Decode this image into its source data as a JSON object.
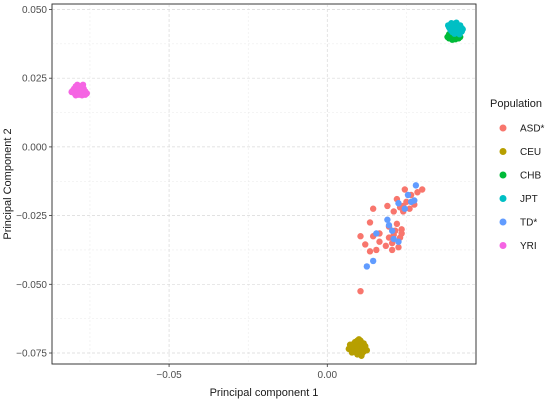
{
  "chart_data": {
    "type": "scatter",
    "xlabel": "Principal component 1",
    "ylabel": "Principal Component 2",
    "xlim": [
      -0.087,
      0.047
    ],
    "ylim": [
      -0.079,
      0.052
    ],
    "x_ticks": [
      -0.05,
      0.0
    ],
    "x_tick_labels": [
      "−0.05",
      "0.00"
    ],
    "y_ticks": [
      0.05,
      0.025,
      0.0,
      -0.025,
      -0.05,
      -0.075
    ],
    "y_tick_labels": [
      "0.050",
      "0.025",
      "0.000",
      "−0.025",
      "−0.050",
      "−0.075"
    ],
    "grid": true,
    "legend": {
      "title": "Population",
      "position": "right"
    },
    "series": [
      {
        "name": "ASD*",
        "color": "#F8766D",
        "points": [
          [
            0.0245,
            -0.0155
          ],
          [
            0.0285,
            -0.0165
          ],
          [
            0.03,
            -0.0155
          ],
          [
            0.0265,
            -0.0175
          ],
          [
            0.022,
            -0.019
          ],
          [
            0.025,
            -0.02
          ],
          [
            0.0275,
            -0.021
          ],
          [
            0.024,
            -0.0215
          ],
          [
            0.019,
            -0.0215
          ],
          [
            0.023,
            -0.022
          ],
          [
            0.026,
            -0.0225
          ],
          [
            0.0145,
            -0.0225
          ],
          [
            0.021,
            -0.0235
          ],
          [
            0.024,
            -0.0235
          ],
          [
            0.0135,
            -0.0275
          ],
          [
            0.022,
            -0.028
          ],
          [
            0.0195,
            -0.029
          ],
          [
            0.0215,
            -0.0305
          ],
          [
            0.0235,
            -0.03
          ],
          [
            0.0165,
            -0.0315
          ],
          [
            0.021,
            -0.032
          ],
          [
            0.0145,
            -0.0325
          ],
          [
            0.0105,
            -0.0325
          ],
          [
            0.0195,
            -0.033
          ],
          [
            0.023,
            -0.033
          ],
          [
            0.0165,
            -0.0345
          ],
          [
            0.0205,
            -0.035
          ],
          [
            0.012,
            -0.0355
          ],
          [
            0.0185,
            -0.036
          ],
          [
            0.0225,
            -0.0365
          ],
          [
            0.0155,
            -0.0375
          ],
          [
            0.0135,
            -0.038
          ],
          [
            0.0205,
            -0.0375
          ],
          [
            0.0105,
            -0.0525
          ],
          [
            0.0235,
            -0.0315
          ]
        ]
      },
      {
        "name": "CEU",
        "color": "#B79F00",
        "points": [
          [
            0.0095,
            -0.0705
          ],
          [
            0.0105,
            -0.0705
          ],
          [
            0.0085,
            -0.0715
          ],
          [
            0.01,
            -0.0715
          ],
          [
            0.0115,
            -0.0715
          ],
          [
            0.0075,
            -0.0725
          ],
          [
            0.009,
            -0.0725
          ],
          [
            0.0105,
            -0.0725
          ],
          [
            0.012,
            -0.0725
          ],
          [
            0.008,
            -0.0735
          ],
          [
            0.0095,
            -0.0735
          ],
          [
            0.011,
            -0.0735
          ],
          [
            0.0068,
            -0.0735
          ],
          [
            0.0085,
            -0.0745
          ],
          [
            0.01,
            -0.0745
          ],
          [
            0.0115,
            -0.0745
          ],
          [
            0.0095,
            -0.0755
          ],
          [
            0.011,
            -0.0752
          ],
          [
            0.0078,
            -0.0748
          ],
          [
            0.01,
            -0.07
          ],
          [
            0.0125,
            -0.074
          ],
          [
            0.0088,
            -0.071
          ],
          [
            0.0108,
            -0.076
          ],
          [
            0.0072,
            -0.072
          ]
        ]
      },
      {
        "name": "CHB",
        "color": "#00BA38",
        "points": [
          [
            0.0385,
            0.0395
          ],
          [
            0.0395,
            0.039
          ],
          [
            0.0405,
            0.0392
          ],
          [
            0.0415,
            0.0395
          ],
          [
            0.039,
            0.0402
          ],
          [
            0.04,
            0.04
          ],
          [
            0.041,
            0.0402
          ],
          [
            0.0385,
            0.041
          ],
          [
            0.0398,
            0.0408
          ],
          [
            0.0412,
            0.0408
          ],
          [
            0.042,
            0.04
          ],
          [
            0.038,
            0.04
          ]
        ]
      },
      {
        "name": "JPT",
        "color": "#00BFC4",
        "points": [
          [
            0.039,
            0.0445
          ],
          [
            0.04,
            0.0448
          ],
          [
            0.041,
            0.0445
          ],
          [
            0.042,
            0.0442
          ],
          [
            0.0385,
            0.0435
          ],
          [
            0.0395,
            0.0438
          ],
          [
            0.0405,
            0.0436
          ],
          [
            0.0415,
            0.0435
          ],
          [
            0.0425,
            0.0432
          ],
          [
            0.039,
            0.0425
          ],
          [
            0.04,
            0.0428
          ],
          [
            0.041,
            0.0426
          ],
          [
            0.042,
            0.0425
          ],
          [
            0.0395,
            0.0418
          ],
          [
            0.0405,
            0.0418
          ],
          [
            0.0415,
            0.0416
          ],
          [
            0.0425,
            0.042
          ],
          [
            0.0388,
            0.043
          ],
          [
            0.0428,
            0.0428
          ],
          [
            0.0402,
            0.0412
          ],
          [
            0.0418,
            0.041
          ],
          [
            0.0408,
            0.0452
          ],
          [
            0.0392,
            0.045
          ],
          [
            0.0382,
            0.0442
          ]
        ]
      },
      {
        "name": "TD*",
        "color": "#619CFF",
        "points": [
          [
            0.028,
            -0.014
          ],
          [
            0.0255,
            -0.0175
          ],
          [
            0.0265,
            -0.02
          ],
          [
            0.0225,
            -0.0205
          ],
          [
            0.0245,
            -0.0225
          ],
          [
            0.019,
            -0.0265
          ],
          [
            0.0195,
            -0.0285
          ],
          [
            0.021,
            -0.0335
          ],
          [
            0.0155,
            -0.0315
          ],
          [
            0.0225,
            -0.0345
          ],
          [
            0.0145,
            -0.0415
          ],
          [
            0.0125,
            -0.0435
          ],
          [
            0.0275,
            -0.0195
          ],
          [
            0.0205,
            -0.0305
          ]
        ]
      },
      {
        "name": "YRI",
        "color": "#F564E3",
        "points": [
          [
            -0.0795,
            0.022
          ],
          [
            -0.0785,
            0.0222
          ],
          [
            -0.0775,
            0.022
          ],
          [
            -0.08,
            0.0212
          ],
          [
            -0.079,
            0.0215
          ],
          [
            -0.078,
            0.0214
          ],
          [
            -0.077,
            0.0212
          ],
          [
            -0.0805,
            0.0204
          ],
          [
            -0.0795,
            0.0206
          ],
          [
            -0.0785,
            0.0205
          ],
          [
            -0.0775,
            0.0206
          ],
          [
            -0.0765,
            0.0202
          ],
          [
            -0.08,
            0.0196
          ],
          [
            -0.079,
            0.0198
          ],
          [
            -0.078,
            0.0196
          ],
          [
            -0.077,
            0.0198
          ],
          [
            -0.076,
            0.0195
          ],
          [
            -0.0795,
            0.0188
          ],
          [
            -0.0785,
            0.019
          ],
          [
            -0.0775,
            0.0188
          ],
          [
            -0.0765,
            0.019
          ],
          [
            -0.0808,
            0.02
          ],
          [
            -0.079,
            0.0226
          ],
          [
            -0.0772,
            0.0226
          ]
        ]
      }
    ]
  }
}
